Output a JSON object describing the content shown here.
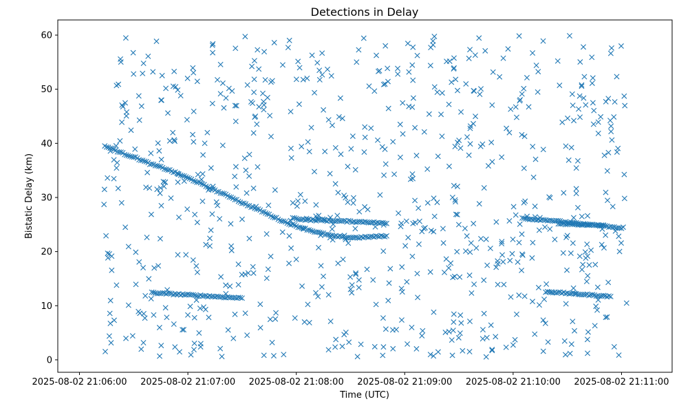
{
  "chart_data": {
    "type": "scatter",
    "title": "Detections in Delay",
    "xlabel": "Time (UTC)",
    "ylabel": "Bistatic Delay (km)",
    "marker": "x",
    "color": "#1f77b4",
    "grid": false,
    "legend": "none",
    "x_scale": "time",
    "x_ticks": [
      {
        "t": 0,
        "label": "2025-08-02 21:06:00"
      },
      {
        "t": 60,
        "label": "2025-08-02 21:07:00"
      },
      {
        "t": 120,
        "label": "2025-08-02 21:08:00"
      },
      {
        "t": 180,
        "label": "2025-08-02 21:09:00"
      },
      {
        "t": 240,
        "label": "2025-08-02 21:10:00"
      },
      {
        "t": 300,
        "label": "2025-08-02 21:11:00"
      }
    ],
    "xlim": [
      "2025-08-02 21:05:48",
      "2025-08-02 21:11:28"
    ],
    "ylim": [
      -2.3,
      62.8
    ],
    "y_ticks": [
      0,
      10,
      20,
      30,
      40,
      50,
      60
    ],
    "tracks": [
      {
        "t": [
          14,
          18,
          22,
          26,
          30,
          35,
          40,
          45,
          50,
          55,
          60,
          65,
          70,
          75,
          80,
          85,
          90,
          95,
          100,
          105,
          110,
          115,
          120,
          125,
          130,
          135,
          140,
          145,
          150,
          155,
          160,
          165,
          170
        ],
        "delay": [
          39.5,
          39.0,
          38.4,
          37.9,
          37.5,
          36.8,
          36.1,
          35.6,
          35.0,
          34.3,
          33.6,
          32.9,
          32.1,
          31.3,
          30.6,
          29.9,
          29.0,
          28.3,
          27.6,
          26.8,
          26.0,
          25.3,
          24.7,
          24.2,
          23.7,
          23.3,
          22.9,
          22.7,
          22.6,
          22.6,
          22.7,
          22.8,
          22.9
        ]
      },
      {
        "t": [
          118,
          122,
          126,
          130,
          134,
          138,
          142,
          146,
          150,
          154,
          158,
          162,
          166,
          170
        ],
        "delay": [
          26.2,
          26.0,
          25.9,
          25.8,
          25.8,
          25.7,
          25.7,
          25.6,
          25.6,
          25.5,
          25.5,
          25.4,
          25.3,
          25.2
        ]
      },
      {
        "t": [
          245,
          250,
          255,
          260,
          265,
          270,
          275,
          280,
          285,
          290,
          295,
          300
        ],
        "delay": [
          26.2,
          26.0,
          25.9,
          25.8,
          25.6,
          25.4,
          25.2,
          25.0,
          24.9,
          24.7,
          24.5,
          24.3
        ]
      },
      {
        "t": [
          265,
          270,
          275,
          280,
          285,
          290
        ],
        "delay": [
          25.1,
          25.1,
          25.0,
          25.0,
          24.9,
          24.9
        ]
      },
      {
        "t": [
          40,
          45,
          50,
          55,
          60,
          65,
          70,
          75,
          80,
          85,
          90
        ],
        "delay": [
          12.4,
          12.3,
          12.2,
          12.1,
          12.0,
          11.9,
          11.8,
          11.7,
          11.6,
          11.5,
          11.4
        ]
      },
      {
        "t": [
          258,
          262,
          266,
          270,
          274,
          278,
          282,
          286,
          290,
          294
        ],
        "delay": [
          12.6,
          12.5,
          12.4,
          12.3,
          12.2,
          12.1,
          12.0,
          11.9,
          11.8,
          11.7
        ]
      }
    ],
    "noise": {
      "count": 780,
      "t_range": [
        13,
        303
      ],
      "delay_range": [
        0.5,
        60
      ]
    }
  }
}
